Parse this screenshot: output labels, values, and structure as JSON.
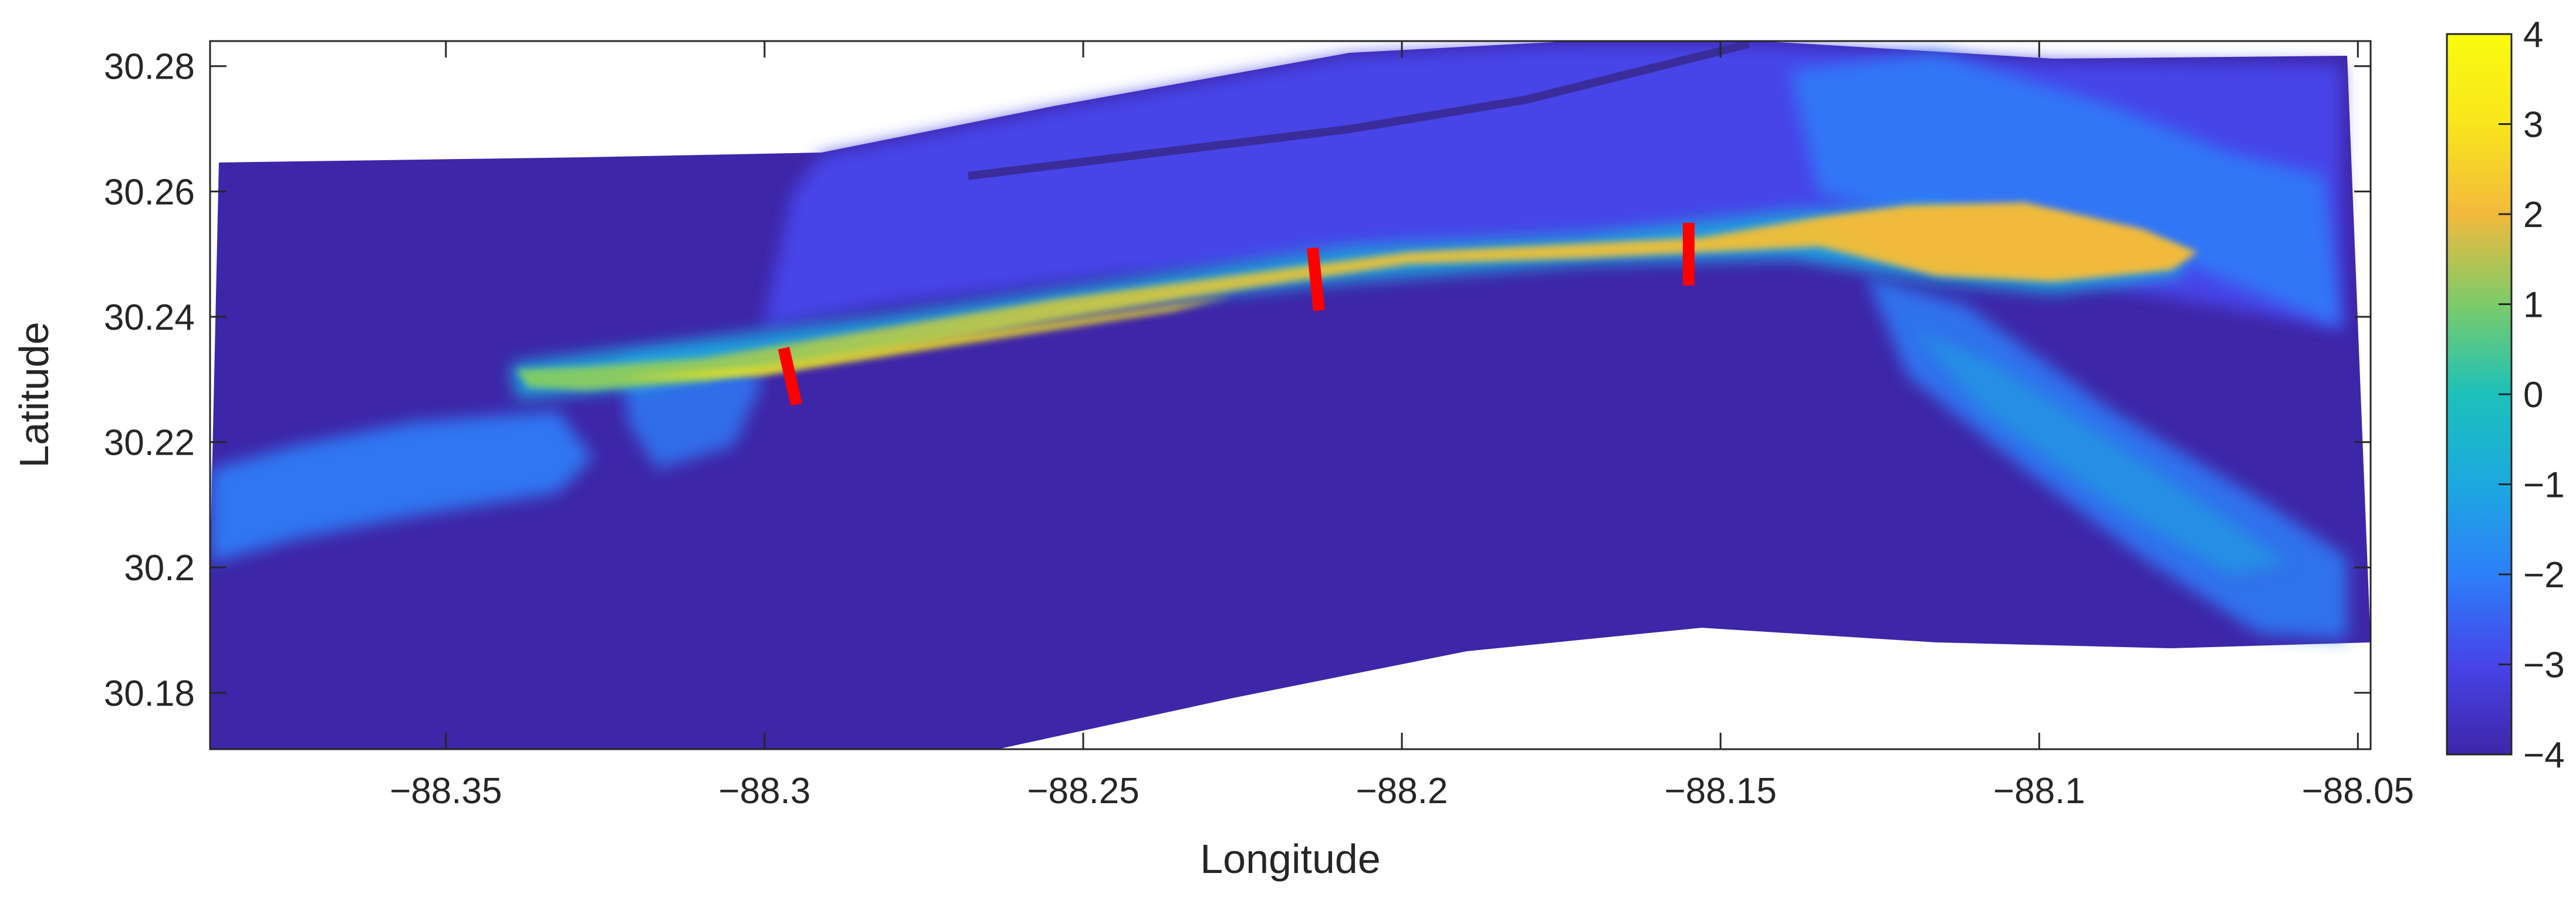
{
  "chart_data": {
    "type": "heatmap",
    "title": "",
    "xlabel": "Longitude",
    "ylabel": "Latitude",
    "xlim": [
      -88.387,
      -88.048
    ],
    "ylim": [
      30.171,
      30.284
    ],
    "x_ticks": [
      -88.35,
      -88.3,
      -88.25,
      -88.2,
      -88.15,
      -88.1,
      -88.05
    ],
    "x_tick_labels": [
      "−88.35",
      "−88.3",
      "−88.25",
      "−88.2",
      "−88.15",
      "−88.1",
      "−88.05"
    ],
    "y_ticks": [
      30.18,
      30.2,
      30.22,
      30.24,
      30.26,
      30.28
    ],
    "y_tick_labels": [
      "30.18",
      "30.2",
      "30.22",
      "30.24",
      "30.26",
      "30.28"
    ],
    "colorbar": {
      "range": [
        -4,
        4
      ],
      "ticks": [
        -4,
        -3,
        -2,
        -1,
        0,
        1,
        2,
        3,
        4
      ],
      "tick_labels": [
        "−4",
        "−3",
        "−2",
        "−1",
        "0",
        "1",
        "2",
        "3",
        "4"
      ],
      "colormap": "parula",
      "colors": [
        "#3E26A8",
        "#4744E8",
        "#2D7FF9",
        "#1CA9DF",
        "#1CC1BA",
        "#7CCB69",
        "#F2BA3C",
        "#F9E51C",
        "#F9FB0E"
      ]
    },
    "grid": false,
    "transects": [
      {
        "lon": [
          -88.297,
          -88.295
        ],
        "lat": [
          30.235,
          30.226
        ]
      },
      {
        "lon": [
          -88.214,
          -88.213
        ],
        "lat": [
          30.251,
          30.241
        ]
      },
      {
        "lon": [
          -88.155,
          -88.155
        ],
        "lat": [
          30.255,
          30.245
        ]
      }
    ],
    "transect_color": "#FF0000"
  }
}
